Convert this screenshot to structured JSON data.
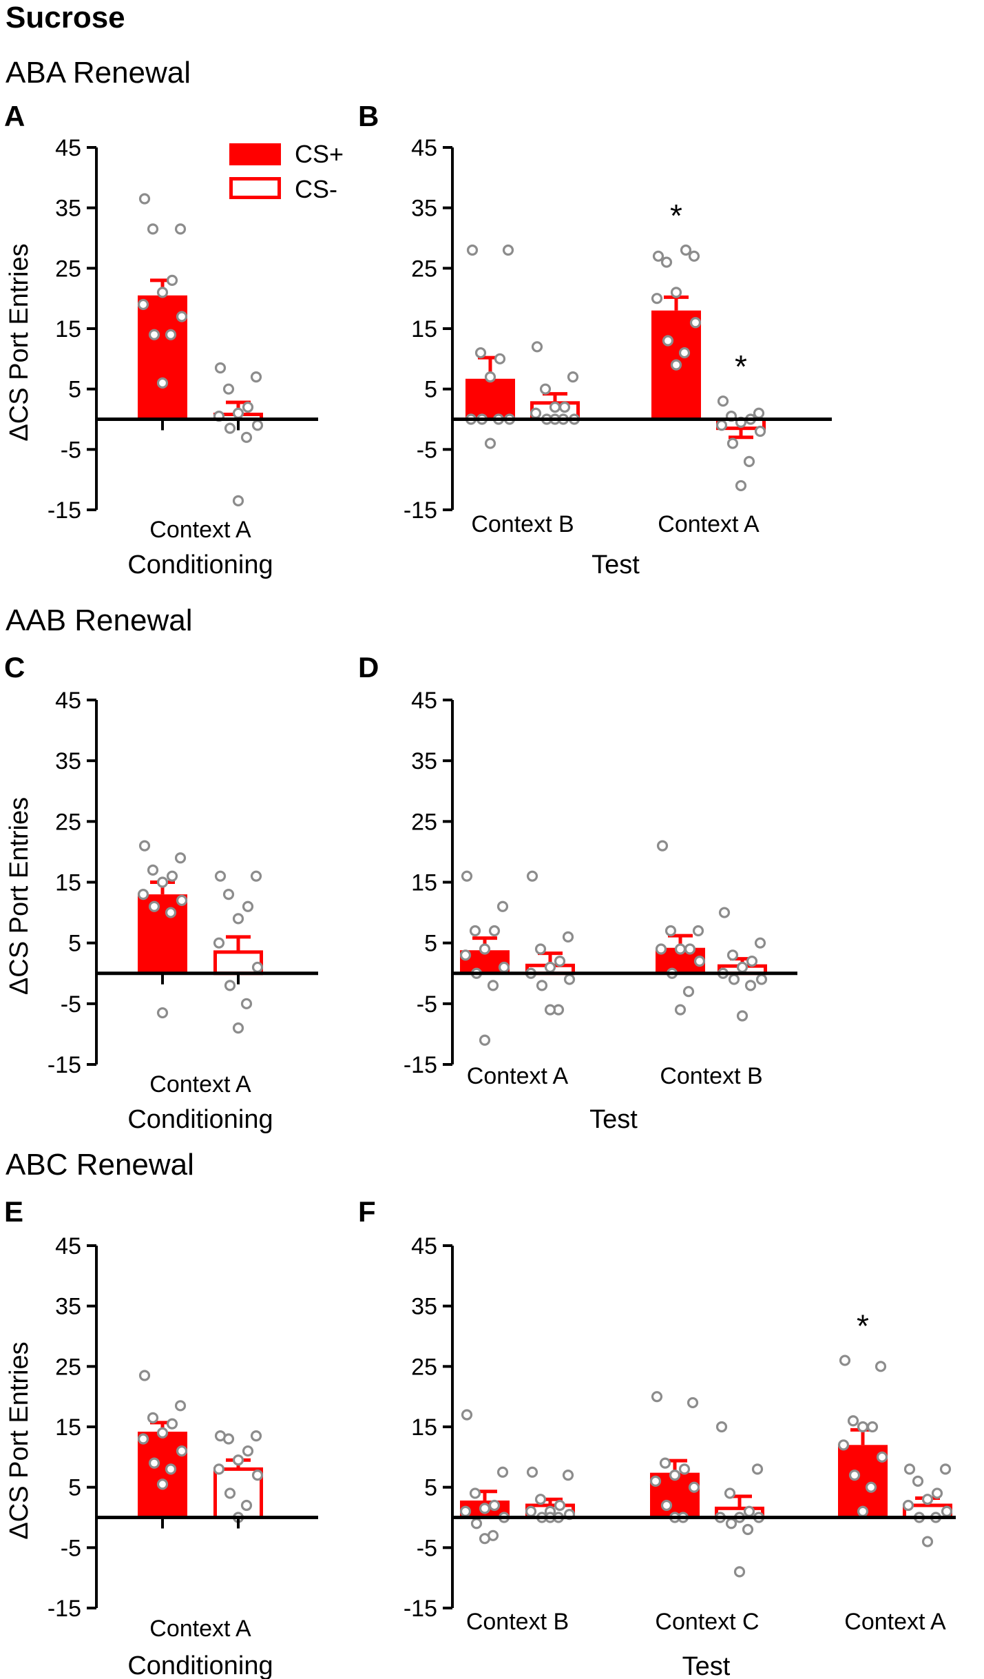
{
  "title": "Sucrose",
  "axis_label": "ΔCS Port Entries",
  "legend": {
    "cs_plus": "CS+",
    "cs_minus": "CS-"
  },
  "colors": {
    "bar": "#ff0000",
    "outline": "#ff0000",
    "point_edge": "#8c8c8c",
    "axis": "#000000"
  },
  "sections": [
    {
      "id": "aba",
      "label": "ABA Renewal"
    },
    {
      "id": "aab",
      "label": "AAB Renewal"
    },
    {
      "id": "abc",
      "label": "ABC Renewal"
    }
  ],
  "chart_data": [
    {
      "panel": "A",
      "type": "bar",
      "section": "ABA Renewal",
      "ylabel": "ΔCS Port Entries",
      "ylim": [
        -15,
        45
      ],
      "yticks": [
        45,
        35,
        25,
        15,
        5,
        -5,
        -15
      ],
      "group_label": "Conditioning",
      "categories": [
        "Context A"
      ],
      "series": [
        {
          "name": "CS+",
          "means": [
            20.5
          ],
          "sem": [
            2.5
          ],
          "points": [
            [
              36.5,
              31.5,
              31.5,
              23,
              21,
              19,
              17,
              14,
              14,
              6
            ]
          ]
        },
        {
          "name": "CS-",
          "means": [
            0.8
          ],
          "sem": [
            2.0
          ],
          "points": [
            [
              8.5,
              7,
              5,
              2,
              1,
              0.5,
              -1,
              -1.5,
              -3,
              -13.5
            ]
          ]
        }
      ],
      "significance": []
    },
    {
      "panel": "B",
      "type": "bar",
      "section": "ABA Renewal",
      "ylim": [
        -15,
        45
      ],
      "yticks": [
        45,
        35,
        25,
        15,
        5,
        -5,
        -15
      ],
      "group_label": "Test",
      "categories": [
        "Context B",
        "Context A"
      ],
      "series": [
        {
          "name": "CS+",
          "means": [
            6.7,
            18
          ],
          "sem": [
            3.5,
            2.2
          ],
          "points": [
            [
              28,
              28,
              11,
              10,
              7,
              0,
              0,
              0,
              0,
              -4
            ],
            [
              27,
              27,
              26,
              28,
              21,
              20,
              16,
              13,
              11,
              9
            ]
          ]
        },
        {
          "name": "CS-",
          "means": [
            2.7,
            -1.5
          ],
          "sem": [
            1.5,
            1.5
          ],
          "points": [
            [
              12,
              7,
              5,
              2,
              2,
              1,
              0,
              0,
              0,
              0
            ],
            [
              3,
              1,
              0.5,
              0,
              -0.5,
              -1,
              -2,
              -4,
              -7,
              -11
            ]
          ]
        }
      ],
      "significance": [
        {
          "category": "Context A",
          "series": "CS+",
          "mark": "*"
        },
        {
          "category": "Context A",
          "series": "CS-",
          "mark": "*"
        }
      ]
    },
    {
      "panel": "C",
      "type": "bar",
      "section": "AAB Renewal",
      "ylabel": "ΔCS Port Entries",
      "ylim": [
        -15,
        45
      ],
      "yticks": [
        45,
        35,
        25,
        15,
        5,
        -5,
        -15
      ],
      "group_label": "Conditioning",
      "categories": [
        "Context A"
      ],
      "series": [
        {
          "name": "CS+",
          "means": [
            13
          ],
          "sem": [
            2
          ],
          "points": [
            [
              21,
              19,
              17,
              16,
              15,
              13,
              12,
              11,
              10,
              -6.5
            ]
          ]
        },
        {
          "name": "CS-",
          "means": [
            3.5
          ],
          "sem": [
            2.5
          ],
          "points": [
            [
              16,
              16,
              13,
              11,
              9,
              5,
              1,
              -2,
              -5,
              -9
            ]
          ]
        }
      ],
      "significance": []
    },
    {
      "panel": "D",
      "type": "bar",
      "section": "AAB Renewal",
      "ylim": [
        -15,
        45
      ],
      "yticks": [
        45,
        35,
        25,
        15,
        5,
        -5,
        -15
      ],
      "group_label": "Test",
      "categories": [
        "Context A",
        "Context B"
      ],
      "series": [
        {
          "name": "CS+",
          "means": [
            3.8,
            4.2
          ],
          "sem": [
            2,
            2
          ],
          "points": [
            [
              16,
              11,
              7,
              7,
              4,
              3,
              1,
              0,
              -2,
              -11
            ],
            [
              21,
              7,
              7,
              4,
              4,
              4,
              2,
              0,
              -3,
              -6
            ]
          ]
        },
        {
          "name": "CS-",
          "means": [
            1.3,
            1.2
          ],
          "sem": [
            2,
            1.2
          ],
          "points": [
            [
              16,
              6,
              4,
              2,
              1,
              0,
              -1,
              -2,
              -6,
              -6
            ],
            [
              10,
              5,
              3,
              2,
              1,
              0,
              -1,
              -1,
              -2,
              -7
            ]
          ]
        }
      ],
      "significance": []
    },
    {
      "panel": "E",
      "type": "bar",
      "section": "ABC Renewal",
      "ylabel": "ΔCS Port Entries",
      "ylim": [
        -15,
        45
      ],
      "yticks": [
        45,
        35,
        25,
        15,
        5,
        -5,
        -15
      ],
      "group_label": "Conditioning",
      "categories": [
        "Context A"
      ],
      "series": [
        {
          "name": "CS+",
          "means": [
            14.2
          ],
          "sem": [
            1.5
          ],
          "points": [
            [
              23.5,
              18.5,
              16.5,
              15.5,
              14,
              13,
              11,
              9,
              8,
              5.5
            ]
          ]
        },
        {
          "name": "CS-",
          "means": [
            8
          ],
          "sem": [
            1.5
          ],
          "points": [
            [
              13.5,
              13.5,
              13,
              11,
              9.5,
              8,
              7,
              4,
              2,
              0
            ]
          ]
        }
      ],
      "significance": []
    },
    {
      "panel": "F",
      "type": "bar",
      "section": "ABC Renewal",
      "ylim": [
        -15,
        45
      ],
      "yticks": [
        45,
        35,
        25,
        15,
        5,
        -5,
        -15
      ],
      "group_label": "Test",
      "categories": [
        "Context B",
        "Context C",
        "Context A"
      ],
      "series": [
        {
          "name": "CS+",
          "means": [
            2.8,
            7.4,
            12
          ],
          "sem": [
            1.5,
            2,
            2.5
          ],
          "points": [
            [
              17,
              7.5,
              4,
              2,
              1.5,
              1,
              0,
              -1,
              -3,
              -3.5
            ],
            [
              20,
              19,
              9,
              8,
              7,
              6,
              5,
              2,
              0,
              0
            ],
            [
              26,
              25,
              16,
              15,
              15,
              12,
              10,
              7,
              5,
              1
            ]
          ]
        },
        {
          "name": "CS-",
          "means": [
            2,
            1.5,
            2
          ],
          "sem": [
            1,
            2,
            1.2
          ],
          "points": [
            [
              7.5,
              7,
              3,
              2,
              1,
              1,
              0.5,
              0,
              0,
              0
            ],
            [
              15,
              8,
              4,
              1,
              0,
              0,
              0,
              -1,
              -2,
              -9
            ],
            [
              8,
              8,
              6,
              4,
              3,
              2,
              1,
              0,
              0,
              -4
            ]
          ]
        }
      ],
      "significance": [
        {
          "category": "Context A",
          "series": "CS+",
          "mark": "*"
        }
      ]
    }
  ]
}
